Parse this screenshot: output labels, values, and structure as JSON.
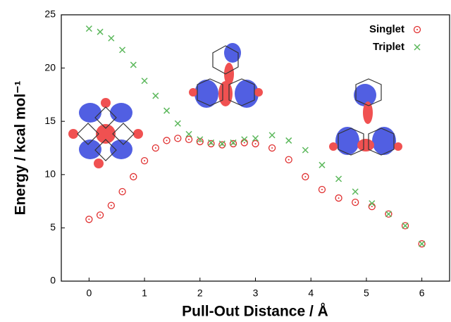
{
  "chart_data": {
    "type": "scatter",
    "x_label": "Pull-Out Distance / Å",
    "y_label": "Energy / kcal mol⁻¹",
    "x": [
      0,
      0.2,
      0.4,
      0.6,
      0.8,
      1.0,
      1.2,
      1.4,
      1.6,
      1.8,
      2.0,
      2.2,
      2.4,
      2.6,
      2.8,
      3.0,
      3.3,
      3.6,
      3.9,
      4.2,
      4.5,
      4.8,
      5.1,
      5.4,
      5.7,
      6.0
    ],
    "series": [
      {
        "name": "Singlet",
        "color": "#e03030",
        "marker": "circle",
        "values": [
          5.8,
          6.2,
          7.1,
          8.4,
          9.8,
          11.3,
          12.5,
          13.2,
          13.4,
          13.3,
          13.1,
          12.9,
          12.8,
          12.9,
          13.0,
          12.9,
          12.5,
          11.4,
          9.8,
          8.6,
          7.8,
          7.4,
          7.0,
          6.3,
          5.2,
          3.5
        ]
      },
      {
        "name": "Triplet",
        "color": "#5cb85c",
        "marker": "cross",
        "values": [
          23.7,
          23.4,
          22.8,
          21.7,
          20.3,
          18.8,
          17.4,
          16.0,
          14.8,
          13.8,
          13.3,
          13.0,
          12.9,
          13.0,
          13.3,
          13.4,
          13.7,
          13.2,
          12.3,
          10.9,
          9.6,
          8.4,
          7.3,
          6.3,
          5.2,
          3.5
        ]
      }
    ],
    "xlim": [
      -0.5,
      6.5
    ],
    "xticks": [
      0,
      1,
      2,
      3,
      4,
      5,
      6
    ],
    "ylim": [
      0,
      25
    ],
    "yticks": [
      0,
      5,
      10,
      15,
      20,
      25
    ],
    "legend": "upper right"
  }
}
